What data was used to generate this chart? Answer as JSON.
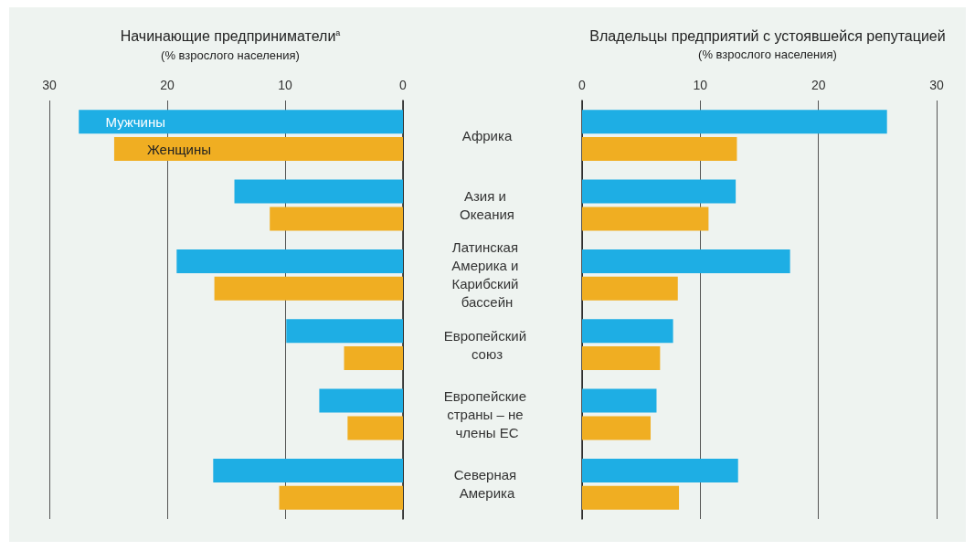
{
  "chart_data": [
    {
      "type": "bar",
      "orientation": "horizontal",
      "title": "Начинающие предприниматели$^{а}$",
      "subtitle": "(% взрослого населения)",
      "categories": [
        "Африка",
        "Азия и Океания",
        "Латинская Америка и Карибский бассейн",
        "Европейский союз",
        "Европейские страны – не члены ЕС",
        "Северная Америка"
      ],
      "series": [
        {
          "name": "Мужчины",
          "color": "#1eaee4",
          "values": [
            27.5,
            14.3,
            19.2,
            9.9,
            7.1,
            16.1
          ]
        },
        {
          "name": "Женщины",
          "color": "#f0ae22",
          "values": [
            24.5,
            11.3,
            16.0,
            5.0,
            4.7,
            10.5
          ]
        }
      ],
      "xlim": [
        30,
        0
      ],
      "xticks": [
        30,
        20,
        10,
        0
      ],
      "grid": "x",
      "legend": false
    },
    {
      "type": "bar",
      "orientation": "horizontal",
      "title": "Владельцы предприятий с устоявшейся репутацией",
      "subtitle": "(% взрослого населения)",
      "categories": [
        "Африка",
        "Азия и Океания",
        "Латинская Америка и Карибский бассейн",
        "Европейский союз",
        "Европейские страны – не члены ЕС",
        "Северная Америка"
      ],
      "series": [
        {
          "color": "#1eaee4",
          "values": [
            25.8,
            13.0,
            17.6,
            7.7,
            6.3,
            13.2
          ]
        },
        {
          "color": "#f0ae22",
          "values": [
            13.1,
            10.7,
            8.1,
            6.6,
            5.8,
            8.2
          ]
        }
      ],
      "xlim": [
        0,
        30
      ],
      "xticks": [
        0,
        10,
        20,
        30
      ],
      "grid": "x",
      "legend": false,
      "tick_labels": "x"
    }
  ]
}
